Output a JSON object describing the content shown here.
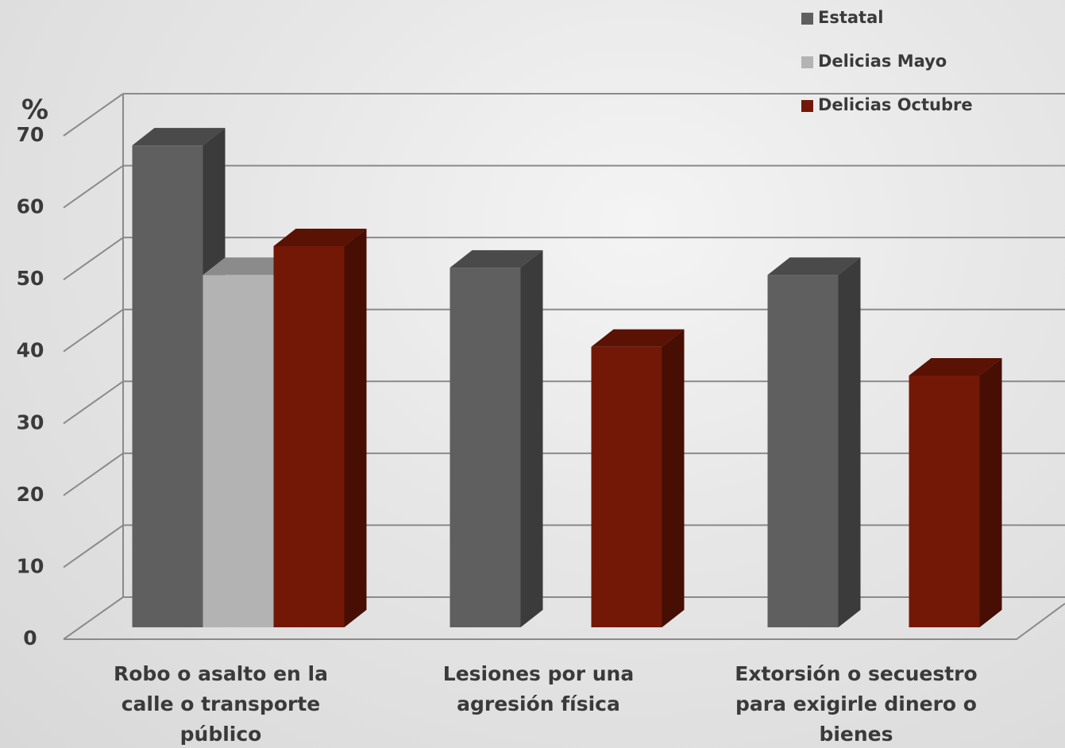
{
  "chart_data": {
    "type": "bar",
    "y_label": "%",
    "categories": [
      "Robo o asalto en la calle o transporte público",
      "Lesiones por una agresión física",
      "Extorsión o secuestro para exigirle dinero o bienes"
    ],
    "series": [
      {
        "name": "Estatal",
        "color": "#5f5f5f",
        "values": [
          67,
          50,
          49
        ]
      },
      {
        "name": "Delicias Mayo",
        "color": "#b3b3b3",
        "values": [
          49,
          null,
          null
        ]
      },
      {
        "name": "Delicias Octubre",
        "color": "#731806",
        "values": [
          53,
          39,
          35
        ]
      }
    ],
    "ylim": [
      0,
      70
    ],
    "yticks": [
      0,
      10,
      20,
      30,
      40,
      50,
      60,
      70
    ],
    "grid": true,
    "legend": "top-right"
  }
}
